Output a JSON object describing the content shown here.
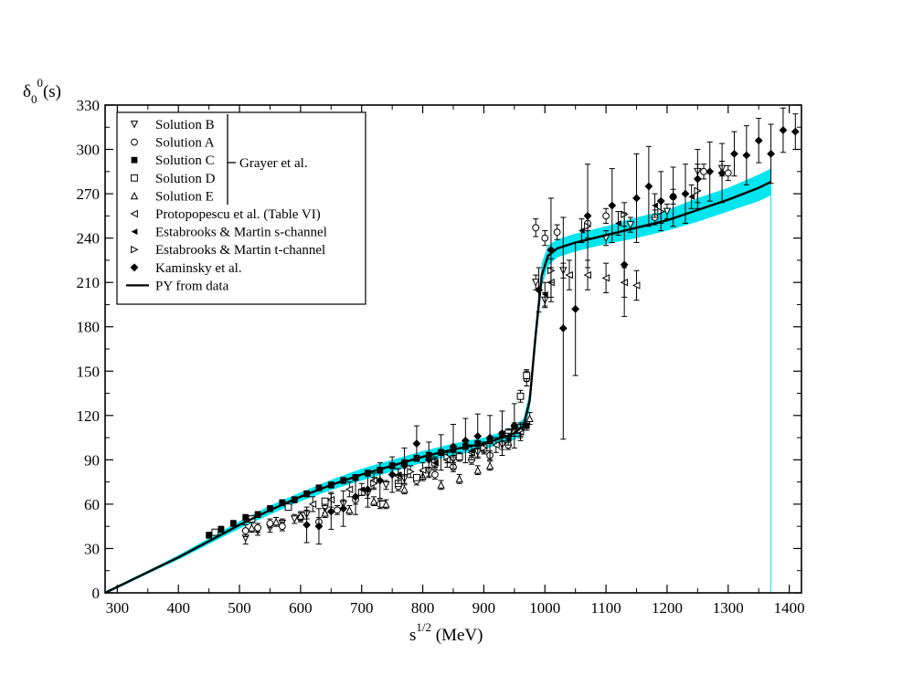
{
  "chart_data": {
    "type": "scatter",
    "title": "",
    "ylabel_main": "δ",
    "ylabel_sub": "0",
    "ylabel_sup": "0",
    "ylabel_tail": "(s)",
    "xlabel_main": "s",
    "xlabel_sup": "1/2",
    "xlabel_tail": " (MeV)",
    "xlim": [
      280,
      1420
    ],
    "ylim": [
      0,
      330
    ],
    "xticks": [
      300,
      400,
      500,
      600,
      700,
      800,
      900,
      1000,
      1100,
      1200,
      1300,
      1400
    ],
    "yticks": [
      0,
      30,
      60,
      90,
      120,
      150,
      180,
      210,
      240,
      270,
      300,
      330
    ],
    "grid": false,
    "legend_position": "top-left",
    "legend_group_label": "Grayer et al.",
    "band_color": "#00e5ee",
    "curve": {
      "name": "PY from data",
      "x": [
        280,
        300,
        320,
        350,
        400,
        450,
        500,
        550,
        600,
        650,
        700,
        750,
        800,
        850,
        900,
        930,
        950,
        965,
        975,
        985,
        995,
        1005,
        1020,
        1050,
        1100,
        1150,
        1200,
        1250,
        1300,
        1350,
        1370
      ],
      "y": [
        0,
        4,
        8,
        14,
        24,
        35,
        46,
        56,
        65,
        73,
        80,
        86,
        92,
        97,
        101,
        105,
        108,
        113,
        130,
        175,
        215,
        228,
        233,
        237,
        242,
        247,
        252,
        259,
        266,
        274,
        278
      ],
      "band_half_width": [
        1,
        1,
        1,
        1,
        1.5,
        2,
        2.5,
        3,
        3,
        3.5,
        4,
        4,
        4,
        4,
        4,
        4,
        4.5,
        5,
        6,
        8,
        8,
        7,
        6,
        6,
        6,
        7,
        7,
        8,
        8,
        9,
        9
      ]
    },
    "series": [
      {
        "name": "Solution B",
        "marker": "tri-down",
        "points": [
          [
            510,
            37,
            4
          ],
          [
            530,
            42,
            3
          ],
          [
            550,
            44,
            3
          ],
          [
            570,
            47,
            3
          ],
          [
            590,
            50,
            3
          ],
          [
            610,
            53,
            3
          ],
          [
            640,
            57,
            3
          ],
          [
            670,
            60,
            3
          ],
          [
            710,
            67,
            3
          ],
          [
            740,
            73,
            3
          ],
          [
            770,
            77,
            3
          ],
          [
            810,
            82,
            3
          ],
          [
            850,
            90,
            3
          ],
          [
            890,
            95,
            3
          ],
          [
            930,
            100,
            3
          ],
          [
            960,
            108,
            3
          ],
          [
            985,
            210,
            5
          ],
          [
            1000,
            198,
            5
          ],
          [
            1030,
            218,
            5
          ],
          [
            1100,
            240,
            5
          ],
          [
            1140,
            249,
            5
          ],
          [
            1200,
            258,
            5
          ],
          [
            1250,
            285,
            5
          ],
          [
            1290,
            287,
            5
          ]
        ]
      },
      {
        "name": "Solution A",
        "marker": "circle",
        "points": [
          [
            510,
            42,
            4
          ],
          [
            530,
            44,
            3
          ],
          [
            550,
            47,
            3
          ],
          [
            570,
            45,
            3
          ],
          [
            600,
            51,
            3
          ],
          [
            630,
            48,
            3
          ],
          [
            660,
            56,
            3
          ],
          [
            690,
            63,
            3
          ],
          [
            730,
            60,
            3
          ],
          [
            760,
            72,
            3
          ],
          [
            790,
            76,
            3
          ],
          [
            820,
            80,
            3
          ],
          [
            850,
            85,
            3
          ],
          [
            880,
            90,
            3
          ],
          [
            910,
            93,
            3
          ],
          [
            940,
            100,
            3
          ],
          [
            970,
            145,
            5
          ],
          [
            985,
            247,
            6
          ],
          [
            1000,
            240,
            5
          ],
          [
            1020,
            244,
            5
          ],
          [
            1070,
            250,
            5
          ],
          [
            1100,
            255,
            5
          ],
          [
            1180,
            254,
            5
          ],
          [
            1210,
            268,
            5
          ],
          [
            1260,
            285,
            5
          ],
          [
            1300,
            284,
            5
          ]
        ]
      },
      {
        "name": "Solution C",
        "marker": "square-filled",
        "points": [
          [
            450,
            39,
            2
          ],
          [
            470,
            43,
            2
          ],
          [
            490,
            47,
            2
          ],
          [
            510,
            51,
            2
          ],
          [
            530,
            53,
            2
          ],
          [
            550,
            57,
            2
          ],
          [
            570,
            61,
            2
          ],
          [
            590,
            63,
            2
          ],
          [
            610,
            67,
            2
          ],
          [
            630,
            71,
            2
          ],
          [
            650,
            73,
            2
          ],
          [
            670,
            76,
            2
          ],
          [
            690,
            78,
            2
          ],
          [
            710,
            81,
            2
          ],
          [
            730,
            83,
            2
          ],
          [
            750,
            86,
            2
          ],
          [
            770,
            88,
            2
          ],
          [
            790,
            91,
            2
          ],
          [
            810,
            93,
            2
          ],
          [
            830,
            95,
            2
          ],
          [
            850,
            97,
            2
          ],
          [
            870,
            99,
            2
          ],
          [
            890,
            101,
            2
          ],
          [
            910,
            103,
            2
          ],
          [
            930,
            107,
            2
          ],
          [
            950,
            112,
            3
          ],
          [
            970,
            113,
            3
          ]
        ]
      },
      {
        "name": "Solution D",
        "marker": "square-open",
        "points": [
          [
            460,
            41,
            2
          ],
          [
            520,
            50,
            2
          ],
          [
            580,
            58,
            2
          ],
          [
            640,
            62,
            2
          ],
          [
            700,
            68,
            2
          ],
          [
            735,
            60,
            2
          ],
          [
            760,
            74,
            2
          ],
          [
            790,
            78,
            2
          ],
          [
            820,
            88,
            3
          ],
          [
            860,
            92,
            3
          ],
          [
            900,
            98,
            3
          ],
          [
            940,
            108,
            3
          ],
          [
            960,
            133,
            4
          ],
          [
            970,
            147,
            4
          ]
        ]
      },
      {
        "name": "Solution E",
        "marker": "tri-up",
        "points": [
          [
            520,
            44,
            3
          ],
          [
            560,
            48,
            3
          ],
          [
            600,
            52,
            3
          ],
          [
            640,
            54,
            3
          ],
          [
            680,
            56,
            3
          ],
          [
            720,
            62,
            3
          ],
          [
            740,
            60,
            3
          ],
          [
            770,
            70,
            3
          ],
          [
            800,
            79,
            3
          ],
          [
            830,
            73,
            3
          ],
          [
            860,
            77,
            3
          ],
          [
            890,
            83,
            3
          ],
          [
            910,
            86,
            3
          ],
          [
            950,
            110,
            4
          ],
          [
            975,
            118,
            4
          ]
        ]
      },
      {
        "name": "Protopopescu et al.  (Table VI)",
        "marker": "tri-left",
        "points": [
          [
            620,
            60,
            5
          ],
          [
            650,
            63,
            5
          ],
          [
            680,
            70,
            5
          ],
          [
            720,
            76,
            5
          ],
          [
            760,
            79,
            5
          ],
          [
            800,
            83,
            5
          ],
          [
            840,
            90,
            5
          ],
          [
            880,
            95,
            5
          ],
          [
            920,
            100,
            5
          ],
          [
            960,
            109,
            6
          ],
          [
            1010,
            210,
            10
          ],
          [
            1040,
            215,
            10
          ],
          [
            1070,
            215,
            10
          ],
          [
            1100,
            213,
            10
          ],
          [
            1130,
            210,
            10
          ],
          [
            1150,
            208,
            10
          ]
        ]
      },
      {
        "name": "Estabrooks & Martin s-channel",
        "marker": "tri-left-filled",
        "points": [
          [
            700,
            70,
            4
          ],
          [
            760,
            80,
            4
          ],
          [
            820,
            88,
            4
          ],
          [
            880,
            96,
            4
          ],
          [
            940,
            104,
            4
          ],
          [
            1000,
            202,
            8
          ],
          [
            1060,
            245,
            8
          ],
          [
            1120,
            250,
            8
          ],
          [
            1180,
            262,
            8
          ],
          [
            1240,
            268,
            8
          ]
        ]
      },
      {
        "name": "Estabrooks & Martin t-channel",
        "marker": "tri-right",
        "points": [
          [
            720,
            74,
            4
          ],
          [
            780,
            82,
            4
          ],
          [
            840,
            92,
            4
          ],
          [
            900,
            98,
            4
          ],
          [
            960,
            110,
            4
          ],
          [
            1010,
            218,
            8
          ],
          [
            1070,
            248,
            8
          ],
          [
            1130,
            256,
            8
          ],
          [
            1190,
            258,
            8
          ],
          [
            1250,
            272,
            8
          ]
        ]
      },
      {
        "name": "Kaminsky et al.",
        "marker": "diamond-filled",
        "points": [
          [
            610,
            46,
            12
          ],
          [
            630,
            45,
            12
          ],
          [
            650,
            55,
            12
          ],
          [
            670,
            57,
            12
          ],
          [
            690,
            65,
            12
          ],
          [
            710,
            70,
            12
          ],
          [
            730,
            76,
            12
          ],
          [
            750,
            80,
            12
          ],
          [
            770,
            86,
            12
          ],
          [
            790,
            101,
            12
          ],
          [
            810,
            90,
            12
          ],
          [
            830,
            95,
            12
          ],
          [
            850,
            99,
            15
          ],
          [
            870,
            103,
            15
          ],
          [
            890,
            106,
            15
          ],
          [
            910,
            105,
            15
          ],
          [
            930,
            108,
            15
          ],
          [
            950,
            113,
            15
          ],
          [
            990,
            205,
            15
          ],
          [
            1010,
            232,
            35
          ],
          [
            1030,
            179,
            75
          ],
          [
            1050,
            192,
            45
          ],
          [
            1070,
            255,
            35
          ],
          [
            1110,
            262,
            25
          ],
          [
            1130,
            222,
            35
          ],
          [
            1150,
            267,
            30
          ],
          [
            1170,
            275,
            27
          ],
          [
            1190,
            265,
            20
          ],
          [
            1210,
            268,
            20
          ],
          [
            1230,
            270,
            20
          ],
          [
            1250,
            280,
            20
          ],
          [
            1270,
            285,
            20
          ],
          [
            1290,
            284,
            20
          ],
          [
            1310,
            297,
            15
          ],
          [
            1330,
            296,
            20
          ],
          [
            1350,
            306,
            15
          ],
          [
            1370,
            297,
            20
          ],
          [
            1390,
            313,
            15
          ],
          [
            1410,
            312,
            12
          ]
        ]
      }
    ]
  }
}
